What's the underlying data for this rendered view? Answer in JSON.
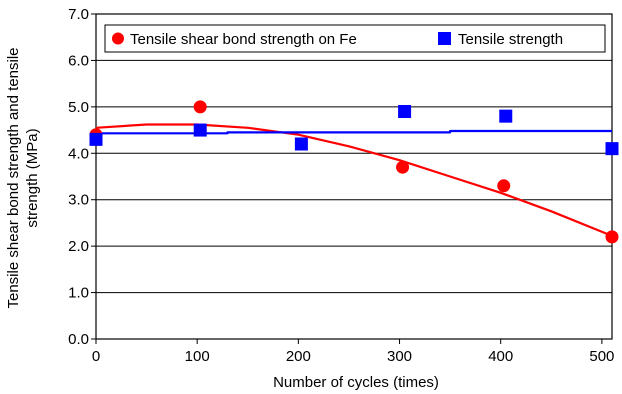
{
  "chart_data": {
    "type": "scatter",
    "xlabel": "Number of cycles (times)",
    "ylabel_lines": [
      "Tensile shear bond strength and tensile",
      "strength (MPa)"
    ],
    "xlim": [
      0,
      510
    ],
    "ylim": [
      0,
      7
    ],
    "x_ticks": [
      "0",
      "100",
      "200",
      "300",
      "400",
      "500"
    ],
    "y_ticks": [
      "0.0",
      "1.0",
      "2.0",
      "3.0",
      "4.0",
      "5.0",
      "6.0",
      "7.0"
    ],
    "grid": "horizontal",
    "legend_position": "top",
    "series": [
      {
        "name": "Tensile shear bond strength on Fe",
        "marker": "circle",
        "color": "#ff0000",
        "points": [
          [
            0,
            4.4
          ],
          [
            103,
            5.0
          ],
          [
            303,
            3.7
          ],
          [
            403,
            3.3
          ],
          [
            510,
            2.2
          ]
        ],
        "trend": [
          [
            0,
            4.55
          ],
          [
            50,
            4.62
          ],
          [
            100,
            4.62
          ],
          [
            150,
            4.55
          ],
          [
            200,
            4.4
          ],
          [
            250,
            4.15
          ],
          [
            300,
            3.85
          ],
          [
            350,
            3.5
          ],
          [
            400,
            3.15
          ],
          [
            450,
            2.75
          ],
          [
            510,
            2.22
          ]
        ]
      },
      {
        "name": "Tensile strength",
        "marker": "square",
        "color": "#0000ff",
        "points": [
          [
            0,
            4.3
          ],
          [
            103,
            4.5
          ],
          [
            203,
            4.2
          ],
          [
            305,
            4.9
          ],
          [
            405,
            4.8
          ],
          [
            510,
            4.1
          ]
        ],
        "trend": [
          [
            0,
            4.43
          ],
          [
            130,
            4.43
          ],
          [
            130,
            4.45
          ],
          [
            350,
            4.45
          ],
          [
            350,
            4.48
          ],
          [
            510,
            4.48
          ]
        ]
      }
    ]
  }
}
